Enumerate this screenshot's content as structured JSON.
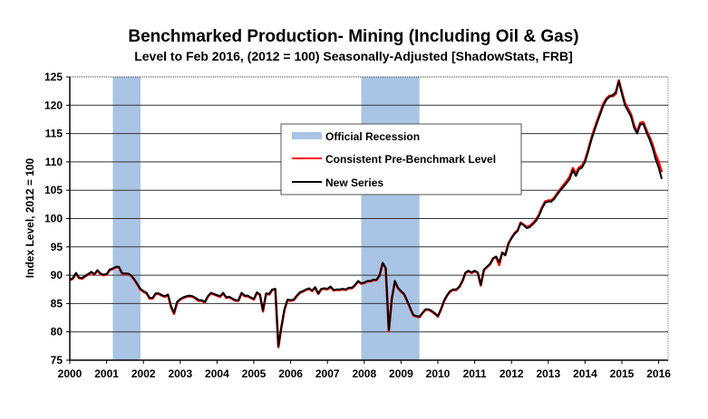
{
  "chart_data": {
    "type": "line",
    "title": "Benchmarked Production- Mining (Including Oil & Gas)",
    "subtitle": "Level to Feb 2016, (2012 = 100) Seasonally-Adjusted [ShadowStats, FRB]",
    "xlabel": "",
    "ylabel": "Index Level, 2012 = 100",
    "ylim": [
      75,
      125
    ],
    "yticks": [
      75,
      80,
      85,
      90,
      95,
      100,
      105,
      110,
      115,
      120,
      125
    ],
    "xlim": [
      2000,
      2016.17
    ],
    "xticks": [
      2000,
      2001,
      2002,
      2003,
      2004,
      2005,
      2006,
      2007,
      2008,
      2009,
      2010,
      2011,
      2012,
      2013,
      2014,
      2015,
      2016
    ],
    "grid": "horizontal",
    "legend_position": "center",
    "frequency": "monthly",
    "start": "2000-01",
    "end": "2016-02",
    "recessions": [
      {
        "label": "Official Recession",
        "start": 2001.17,
        "end": 2001.92
      },
      {
        "label": "Official Recession",
        "start": 2007.92,
        "end": 2009.5
      }
    ],
    "legend": [
      {
        "label": "Official Recession",
        "kind": "band",
        "color": "#a9c4e4"
      },
      {
        "label": "Consistent Pre-Benchmark Level",
        "kind": "line",
        "color": "#ff0000"
      },
      {
        "label": "New Series",
        "kind": "line",
        "color": "#000000"
      }
    ],
    "series": [
      {
        "name": "Consistent Pre-Benchmark Level",
        "color": "#ff0000",
        "values": [
          89.1,
          89.4,
          90.3,
          89.5,
          89.4,
          89.8,
          90.1,
          90.5,
          90.1,
          90.8,
          90.2,
          90.0,
          90.1,
          90.9,
          91.1,
          91.4,
          91.4,
          90.3,
          90.2,
          90.2,
          89.9,
          89.2,
          88.4,
          87.5,
          87.1,
          86.8,
          85.9,
          85.9,
          86.7,
          86.7,
          86.4,
          86.2,
          86.5,
          84.4,
          83.2,
          85.2,
          85.7,
          86.0,
          86.2,
          86.3,
          86.2,
          85.9,
          85.5,
          85.5,
          85.2,
          86.2,
          86.8,
          86.6,
          86.4,
          86.2,
          86.8,
          86.0,
          86.1,
          85.8,
          85.5,
          85.5,
          86.8,
          86.3,
          86.3,
          86.0,
          85.7,
          86.9,
          86.5,
          83.6,
          86.7,
          86.6,
          87.4,
          87.5,
          77.3,
          80.9,
          83.9,
          85.6,
          85.5,
          85.6,
          86.3,
          86.9,
          87.1,
          87.4,
          87.6,
          87.2,
          87.8,
          86.7,
          87.5,
          87.6,
          87.5,
          87.9,
          87.3,
          87.4,
          87.4,
          87.5,
          87.4,
          87.7,
          87.7,
          88.2,
          88.9,
          88.5,
          88.6,
          88.9,
          88.9,
          89.1,
          89.1,
          89.9,
          92.1,
          91.2,
          80.1,
          85.9,
          88.9,
          87.7,
          87.1,
          86.6,
          85.4,
          84.1,
          82.9,
          82.7,
          82.6,
          83.3,
          83.9,
          83.9,
          83.6,
          83.2,
          82.7,
          83.9,
          85.4,
          86.4,
          87.1,
          87.4,
          87.4,
          87.9,
          88.9,
          90.4,
          90.7,
          90.4,
          90.7,
          90.4,
          88.2,
          90.9,
          91.4,
          91.9,
          92.9,
          93.2,
          91.8,
          94.0,
          93.6,
          95.6,
          96.6,
          97.4,
          97.9,
          99.3,
          98.9,
          98.5,
          98.7,
          99.2,
          99.8,
          100.7,
          102.0,
          103.0,
          103.2,
          103.2,
          103.7,
          104.5,
          105.2,
          105.9,
          106.6,
          107.4,
          108.9,
          107.9,
          109.0,
          109.3,
          110.3,
          112.1,
          114.1,
          115.8,
          117.3,
          118.8,
          120.3,
          121.2,
          121.7,
          121.6,
          122.0,
          124.4,
          122.3,
          120.4,
          119.4,
          118.4,
          116.4,
          115.3,
          116.9,
          117.0,
          115.6,
          114.4,
          113.1,
          111.3,
          110.0,
          108.2
        ]
      },
      {
        "name": "New Series",
        "color": "#000000",
        "values": [
          89.2,
          89.5,
          90.4,
          89.6,
          89.5,
          89.9,
          90.2,
          90.6,
          90.2,
          90.9,
          90.3,
          90.1,
          90.2,
          91.0,
          91.2,
          91.5,
          91.5,
          90.4,
          90.3,
          90.3,
          90.0,
          89.3,
          88.5,
          87.6,
          87.2,
          86.9,
          86.0,
          86.0,
          86.8,
          86.8,
          86.5,
          86.3,
          86.6,
          84.5,
          83.4,
          85.3,
          85.8,
          86.1,
          86.3,
          86.4,
          86.3,
          86.0,
          85.6,
          85.6,
          85.3,
          86.3,
          86.9,
          86.7,
          86.5,
          86.3,
          86.9,
          86.1,
          86.2,
          85.9,
          85.6,
          85.6,
          86.9,
          86.4,
          86.4,
          86.1,
          85.8,
          87.0,
          86.6,
          83.8,
          86.8,
          86.7,
          87.5,
          87.6,
          77.5,
          81.0,
          84.0,
          85.7,
          85.6,
          85.7,
          86.4,
          87.0,
          87.2,
          87.5,
          87.7,
          87.3,
          87.9,
          86.8,
          87.6,
          87.7,
          87.6,
          88.0,
          87.4,
          87.5,
          87.5,
          87.6,
          87.5,
          87.8,
          87.8,
          88.3,
          89.0,
          88.6,
          88.7,
          89.0,
          89.0,
          89.2,
          89.2,
          90.0,
          92.2,
          91.3,
          80.3,
          86.0,
          89.0,
          87.8,
          87.2,
          86.7,
          85.5,
          84.2,
          83.0,
          82.8,
          82.7,
          83.4,
          84.0,
          84.0,
          83.7,
          83.3,
          82.8,
          84.0,
          85.5,
          86.5,
          87.2,
          87.5,
          87.5,
          88.0,
          89.0,
          90.5,
          90.8,
          90.5,
          90.8,
          90.5,
          88.3,
          91.0,
          91.5,
          92.0,
          93.0,
          93.3,
          92.3,
          94.0,
          93.5,
          95.5,
          96.5,
          97.3,
          97.8,
          99.2,
          98.8,
          98.3,
          98.5,
          99.0,
          99.6,
          100.5,
          101.8,
          102.8,
          103.0,
          103.0,
          103.5,
          104.3,
          105.0,
          105.6,
          106.3,
          107.0,
          108.5,
          107.5,
          108.7,
          109.0,
          110.0,
          111.8,
          113.8,
          115.5,
          117.0,
          118.5,
          120.0,
          121.0,
          121.5,
          121.8,
          122.3,
          124.2,
          122.0,
          120.0,
          119.0,
          118.0,
          116.0,
          115.0,
          116.6,
          116.7,
          115.2,
          114.0,
          112.5,
          110.5,
          109.0,
          107.0
        ]
      }
    ]
  }
}
